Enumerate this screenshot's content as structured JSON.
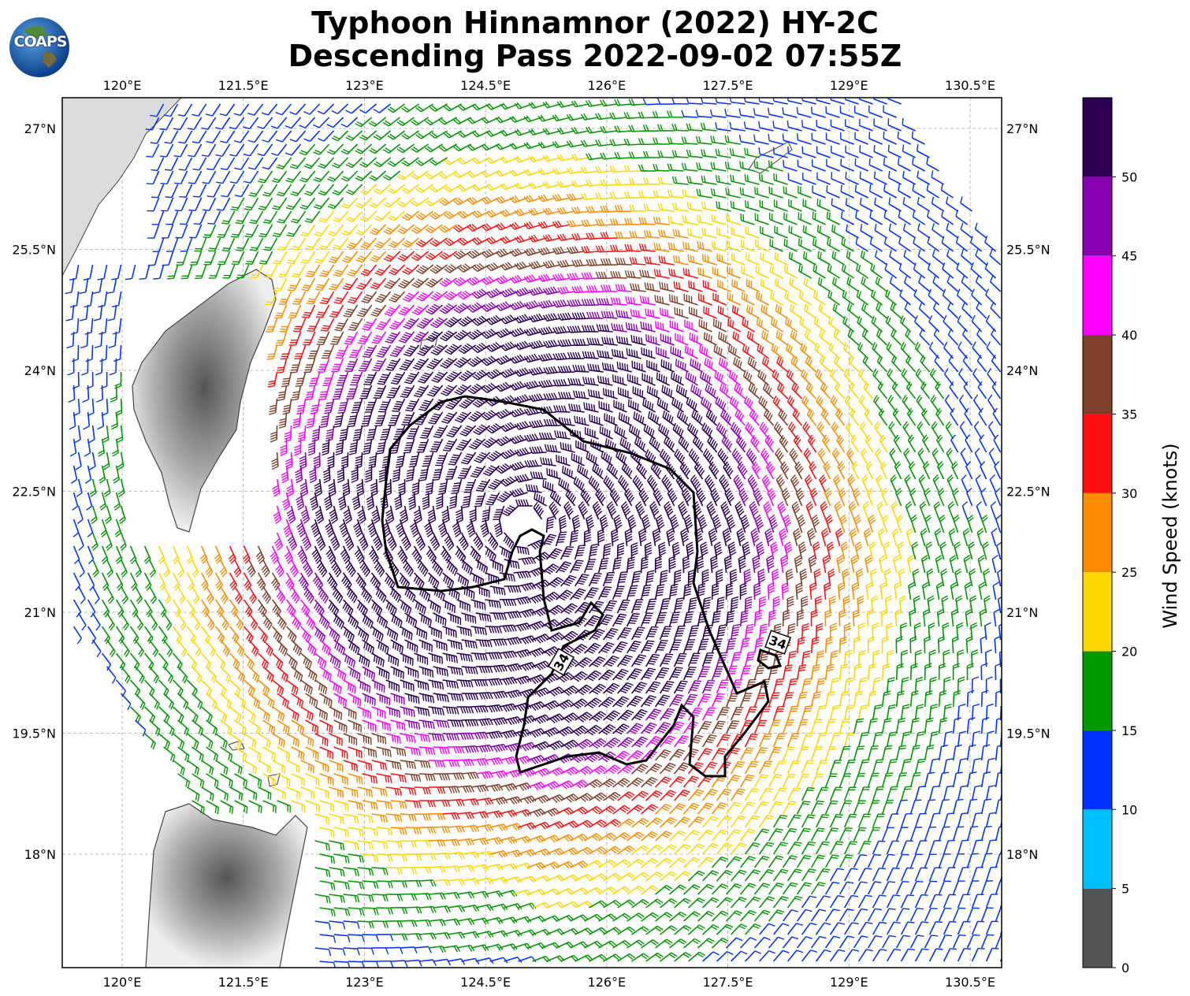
{
  "title_line1": "Typhoon Hinnamnor (2022) HY-2C",
  "title_line2": "Descending Pass 2022-09-02 07:55Z",
  "logo_text": "COAPS",
  "lon_labels": [
    "120°E",
    "121.5°E",
    "123°E",
    "124.5°E",
    "126°E",
    "127.5°E",
    "129°E",
    "130.5°E"
  ],
  "lat_labels": [
    "27°N",
    "25.5°N",
    "24°N",
    "22.5°N",
    "21°N",
    "19.5°N",
    "18°N"
  ],
  "lon_values": [
    120,
    121.5,
    123,
    124.5,
    126,
    127.5,
    129,
    130.5
  ],
  "lat_values": [
    27,
    25.5,
    24,
    22.5,
    21,
    19.5,
    18
  ],
  "contour_label": "34",
  "colorbar": {
    "title": "Wind Speed (knots)",
    "tick_labels": [
      "0",
      "5",
      "10",
      "15",
      "20",
      "25",
      "30",
      "35",
      "40",
      "45",
      "50"
    ],
    "bins": [
      {
        "from": 0,
        "to": 5,
        "color": "#555555"
      },
      {
        "from": 5,
        "to": 10,
        "color": "#00bfff"
      },
      {
        "from": 10,
        "to": 15,
        "color": "#0033ff"
      },
      {
        "from": 15,
        "to": 20,
        "color": "#009900"
      },
      {
        "from": 20,
        "to": 25,
        "color": "#ffd700"
      },
      {
        "from": 25,
        "to": 30,
        "color": "#ff8c00"
      },
      {
        "from": 30,
        "to": 35,
        "color": "#ff1010"
      },
      {
        "from": 35,
        "to": 40,
        "color": "#7f3f2a"
      },
      {
        "from": 40,
        "to": 45,
        "color": "#ff00ff"
      },
      {
        "from": 45,
        "to": 50,
        "color": "#8a00b3"
      },
      {
        "from": 50,
        "to": 55,
        "color": "#2d0055"
      }
    ]
  },
  "storm_center": {
    "lon": 125.0,
    "lat": 22.1
  },
  "land_color": "#d8d8d8"
}
